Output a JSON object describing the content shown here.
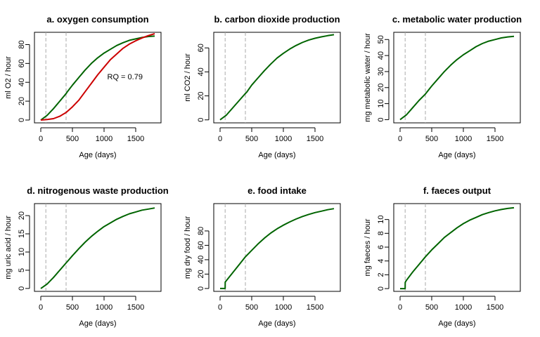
{
  "chart_data": [
    {
      "type": "line",
      "title": "a. oxygen consumption",
      "xlabel": "Age (days)",
      "ylabel": "ml O2 / hour",
      "xlim": [
        -100,
        1900
      ],
      "ylim": [
        -3,
        93
      ],
      "xticks": [
        0,
        500,
        1000,
        1500
      ],
      "yticks": [
        0,
        20,
        40,
        60,
        80
      ],
      "vlines": [
        80,
        400
      ],
      "annotation": {
        "text": "RQ = 0.79",
        "x": 1050,
        "y": 43
      },
      "series": [
        {
          "color": "#006400",
          "points": [
            [
              0,
              0
            ],
            [
              100,
              5
            ],
            [
              200,
              12
            ],
            [
              300,
              20
            ],
            [
              400,
              28
            ],
            [
              420,
              30
            ],
            [
              500,
              37
            ],
            [
              600,
              45
            ],
            [
              700,
              53
            ],
            [
              800,
              60
            ],
            [
              900,
              66
            ],
            [
              1000,
              71
            ],
            [
              1100,
              75
            ],
            [
              1200,
              79
            ],
            [
              1300,
              82
            ],
            [
              1400,
              84.5
            ],
            [
              1500,
              86
            ],
            [
              1600,
              87.5
            ],
            [
              1700,
              88.5
            ],
            [
              1800,
              89
            ]
          ]
        },
        {
          "color": "#cc0000",
          "points": [
            [
              0,
              0
            ],
            [
              100,
              0.5
            ],
            [
              200,
              1.5
            ],
            [
              300,
              4
            ],
            [
              400,
              8
            ],
            [
              500,
              14
            ],
            [
              600,
              21
            ],
            [
              700,
              30
            ],
            [
              800,
              39
            ],
            [
              900,
              48
            ],
            [
              1000,
              56
            ],
            [
              1100,
              64
            ],
            [
              1200,
              70
            ],
            [
              1300,
              76
            ],
            [
              1400,
              80.5
            ],
            [
              1500,
              84
            ],
            [
              1600,
              87
            ],
            [
              1700,
              89.5
            ],
            [
              1800,
              91.5
            ]
          ]
        }
      ]
    },
    {
      "type": "line",
      "title": "b. carbon dioxide production",
      "xlabel": "Age (days)",
      "ylabel": "ml CO2 / hour",
      "xlim": [
        -100,
        1900
      ],
      "ylim": [
        -2.5,
        73
      ],
      "xticks": [
        0,
        500,
        1000,
        1500
      ],
      "yticks": [
        0,
        20,
        40,
        60
      ],
      "vlines": [
        80,
        400
      ],
      "series": [
        {
          "color": "#006400",
          "points": [
            [
              0,
              0
            ],
            [
              100,
              4
            ],
            [
              200,
              10
            ],
            [
              300,
              16
            ],
            [
              400,
              22
            ],
            [
              420,
              23
            ],
            [
              500,
              29
            ],
            [
              600,
              35
            ],
            [
              700,
              41
            ],
            [
              800,
              46.5
            ],
            [
              900,
              51.5
            ],
            [
              1000,
              55.5
            ],
            [
              1100,
              59
            ],
            [
              1200,
              62
            ],
            [
              1300,
              64.5
            ],
            [
              1400,
              66.5
            ],
            [
              1500,
              68
            ],
            [
              1600,
              69.2
            ],
            [
              1700,
              70.2
            ],
            [
              1800,
              71
            ]
          ]
        }
      ]
    },
    {
      "type": "line",
      "title": "c. metabolic water production",
      "xlabel": "Age (days)",
      "ylabel": "mg metabolic water / hour",
      "xlim": [
        -100,
        1900
      ],
      "ylim": [
        -2,
        54.5
      ],
      "xticks": [
        0,
        500,
        1000,
        1500
      ],
      "yticks": [
        0,
        10,
        20,
        30,
        40,
        50
      ],
      "vlines": [
        80,
        400
      ],
      "series": [
        {
          "color": "#006400",
          "points": [
            [
              0,
              0
            ],
            [
              100,
              3
            ],
            [
              200,
              7.5
            ],
            [
              300,
              12
            ],
            [
              400,
              16
            ],
            [
              420,
              17
            ],
            [
              500,
              21
            ],
            [
              600,
              25.5
            ],
            [
              700,
              30
            ],
            [
              800,
              34
            ],
            [
              900,
              37.5
            ],
            [
              1000,
              40.5
            ],
            [
              1100,
              43
            ],
            [
              1200,
              45.5
            ],
            [
              1300,
              47.5
            ],
            [
              1400,
              49
            ],
            [
              1500,
              50
            ],
            [
              1600,
              51
            ],
            [
              1700,
              51.6
            ],
            [
              1800,
              52
            ]
          ]
        }
      ]
    },
    {
      "type": "line",
      "title": "d. nitrogenous waste production",
      "xlabel": "Age (days)",
      "ylabel": "mg uric acid / hour",
      "xlim": [
        -100,
        1900
      ],
      "ylim": [
        -0.8,
        23.3
      ],
      "xticks": [
        0,
        500,
        1000,
        1500
      ],
      "yticks": [
        0,
        5,
        10,
        15,
        20
      ],
      "vlines": [
        80,
        400
      ],
      "series": [
        {
          "color": "#006400",
          "points": [
            [
              0,
              0
            ],
            [
              100,
              1.2
            ],
            [
              200,
              3
            ],
            [
              300,
              5
            ],
            [
              400,
              7
            ],
            [
              420,
              7.4
            ],
            [
              500,
              9
            ],
            [
              600,
              10.9
            ],
            [
              700,
              12.7
            ],
            [
              800,
              14.3
            ],
            [
              900,
              15.7
            ],
            [
              1000,
              17
            ],
            [
              1100,
              18
            ],
            [
              1200,
              19
            ],
            [
              1300,
              19.8
            ],
            [
              1400,
              20.5
            ],
            [
              1500,
              21
            ],
            [
              1600,
              21.5
            ],
            [
              1700,
              21.8
            ],
            [
              1800,
              22.1
            ]
          ]
        }
      ]
    },
    {
      "type": "line",
      "title": "e. food intake",
      "xlabel": "Age (days)",
      "ylabel": "mg dry food / hour",
      "xlim": [
        -100,
        1900
      ],
      "ylim": [
        -4,
        118
      ],
      "xticks": [
        0,
        500,
        1000,
        1500
      ],
      "yticks": [
        0,
        20,
        40,
        60,
        80
      ],
      "vlines": [
        80,
        400
      ],
      "series": [
        {
          "color": "#006400",
          "points": [
            [
              0,
              0
            ],
            [
              60,
              0
            ],
            [
              80,
              0
            ],
            [
              81,
              9
            ],
            [
              100,
              11
            ],
            [
              200,
              22
            ],
            [
              300,
              33
            ],
            [
              400,
              44
            ],
            [
              500,
              53
            ],
            [
              600,
              62
            ],
            [
              700,
              70
            ],
            [
              800,
              77
            ],
            [
              900,
              83
            ],
            [
              1000,
              88
            ],
            [
              1100,
              92.5
            ],
            [
              1200,
              96.5
            ],
            [
              1300,
              100
            ],
            [
              1400,
              103
            ],
            [
              1500,
              105.5
            ],
            [
              1600,
              107.5
            ],
            [
              1700,
              109.5
            ],
            [
              1800,
              111
            ]
          ]
        }
      ]
    },
    {
      "type": "line",
      "title": "f. faeces output",
      "xlabel": "Age (days)",
      "ylabel": "mg faeces / hour",
      "xlim": [
        -100,
        1900
      ],
      "ylim": [
        -0.4,
        12.3
      ],
      "xticks": [
        0,
        500,
        1000,
        1500
      ],
      "yticks": [
        0,
        2,
        4,
        6,
        8,
        10
      ],
      "vlines": [
        80,
        400
      ],
      "series": [
        {
          "color": "#006400",
          "points": [
            [
              0,
              0
            ],
            [
              60,
              0
            ],
            [
              80,
              0
            ],
            [
              81,
              0.9
            ],
            [
              100,
              1.2
            ],
            [
              200,
              2.4
            ],
            [
              300,
              3.5
            ],
            [
              400,
              4.6
            ],
            [
              500,
              5.6
            ],
            [
              600,
              6.5
            ],
            [
              700,
              7.4
            ],
            [
              800,
              8.1
            ],
            [
              900,
              8.8
            ],
            [
              1000,
              9.4
            ],
            [
              1100,
              9.9
            ],
            [
              1200,
              10.3
            ],
            [
              1300,
              10.7
            ],
            [
              1400,
              11
            ],
            [
              1500,
              11.25
            ],
            [
              1600,
              11.45
            ],
            [
              1700,
              11.6
            ],
            [
              1800,
              11.7
            ]
          ]
        }
      ]
    }
  ]
}
